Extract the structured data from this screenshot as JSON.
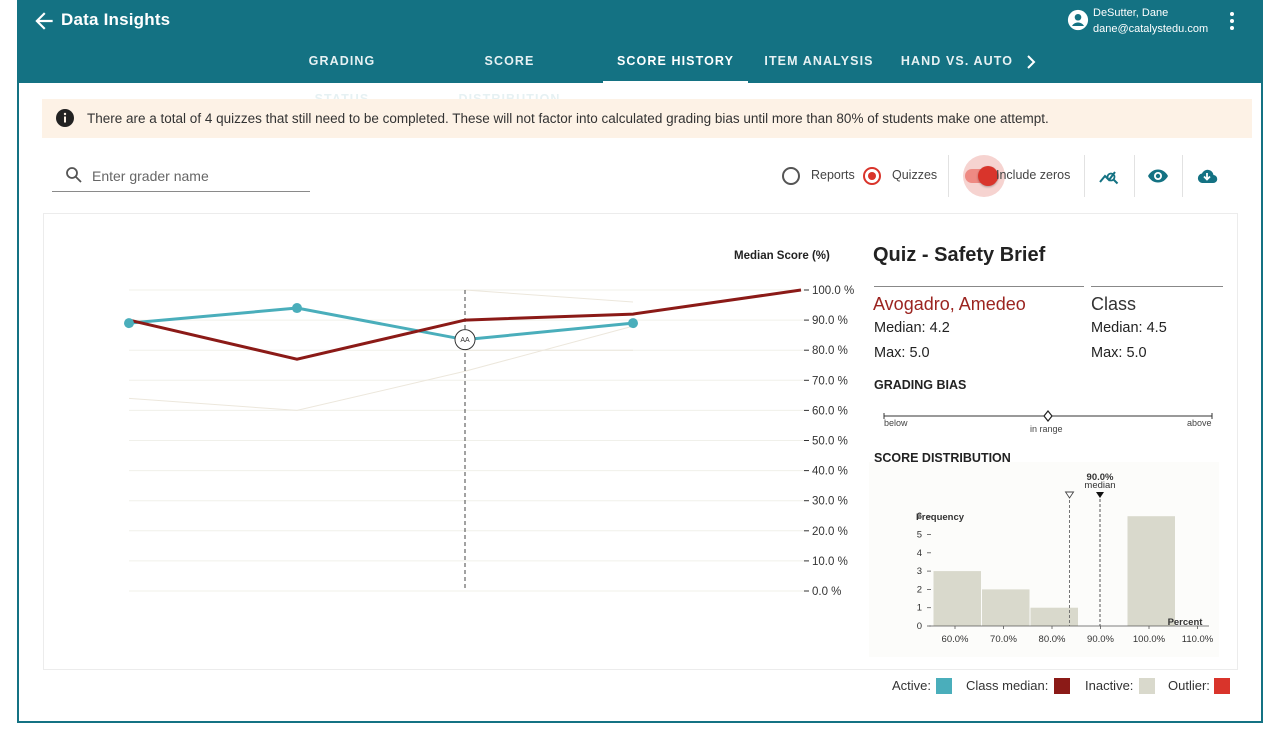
{
  "app": {
    "title": "Data Insights",
    "user_name": "DeSutter, Dane",
    "user_email": "dane@catalystedu.com"
  },
  "tabs": [
    {
      "label": "GRADING STATUS"
    },
    {
      "label": "SCORE DISTRIBUTION"
    },
    {
      "label": "SCORE HISTORY"
    },
    {
      "label": "ITEM ANALYSIS"
    },
    {
      "label": "HAND VS. AUTO"
    }
  ],
  "notice": {
    "text": "There are a total of 4 quizzes that still need to be completed. These will not factor into calculated grading bias until more than 80% of students make one attempt."
  },
  "search": {
    "placeholder": "Enter grader name"
  },
  "controls": {
    "reports_label": "Reports",
    "quizzes_label": "Quizzes",
    "include_zeros_label": "Include zeros",
    "selected": "Quizzes",
    "include_zeros": true
  },
  "colors": {
    "active": "#4aaebb",
    "class_median": "#8b1a17",
    "inactive": "#d9d9cc",
    "outlier": "#d9342b",
    "brand": "#147283"
  },
  "chart_data": {
    "type": "line",
    "ylabel": "Median Score (%)",
    "ylim": [
      0,
      100
    ],
    "ytick_labels": [
      "100.0 %",
      "90.0 %",
      "80.0 %",
      "70.0 %",
      "60.0 %",
      "50.0 %",
      "40.0 %",
      "30.0 %",
      "20.0 %",
      "10.0 %",
      "0.0 %"
    ],
    "x": [
      1,
      2,
      3,
      4,
      5
    ],
    "highlight_x": 3,
    "highlight_label": "AA",
    "series": [
      {
        "name": "Active",
        "values": [
          89,
          94,
          83.5,
          89,
          null
        ]
      },
      {
        "name": "Class median",
        "values": [
          90,
          77,
          90,
          92,
          100
        ]
      },
      {
        "name": "Inactive A",
        "values": [
          64,
          60,
          73,
          88,
          null
        ]
      },
      {
        "name": "Inactive B",
        "values": [
          null,
          null,
          100,
          96,
          null
        ]
      },
      {
        "name": "Inactive C",
        "values": [
          null,
          null,
          80,
          80,
          null
        ]
      }
    ]
  },
  "panel": {
    "title": "Quiz - Safety Brief",
    "grader": {
      "name": "Avogadro, Amedeo",
      "median": "Median: 4.2",
      "max": "Max: 5.0"
    },
    "class": {
      "name": "Class",
      "median": "Median: 4.5",
      "max": "Max: 5.0"
    },
    "bias_title": "GRADING BIAS",
    "bias_labels": {
      "below": "below",
      "in_range": "in range",
      "above": "above"
    },
    "bias_value": 0.5,
    "dist_title": "SCORE DISTRIBUTION"
  },
  "distribution": {
    "type": "bar",
    "median_label": "90.0%",
    "median_caption": "median",
    "median_value": 90,
    "grader_value": 86.5,
    "ylabel": "Frequency",
    "xlabel": "Percent",
    "yticks": [
      0,
      1,
      2,
      3,
      4,
      5,
      6
    ],
    "x_tick_labels": [
      "60.0%",
      "70.0%",
      "80.0%",
      "90.0%",
      "100.0%",
      "110.0%"
    ],
    "bins": [
      {
        "start": 60,
        "end": 70,
        "count": 3
      },
      {
        "start": 70,
        "end": 80,
        "count": 2
      },
      {
        "start": 80,
        "end": 90,
        "count": 1
      },
      {
        "start": 90,
        "end": 100,
        "count": 0
      },
      {
        "start": 100,
        "end": 110,
        "count": 6
      }
    ]
  },
  "legend": {
    "active": "Active:",
    "class_median": "Class median:",
    "inactive": "Inactive:",
    "outlier": "Outlier:"
  }
}
